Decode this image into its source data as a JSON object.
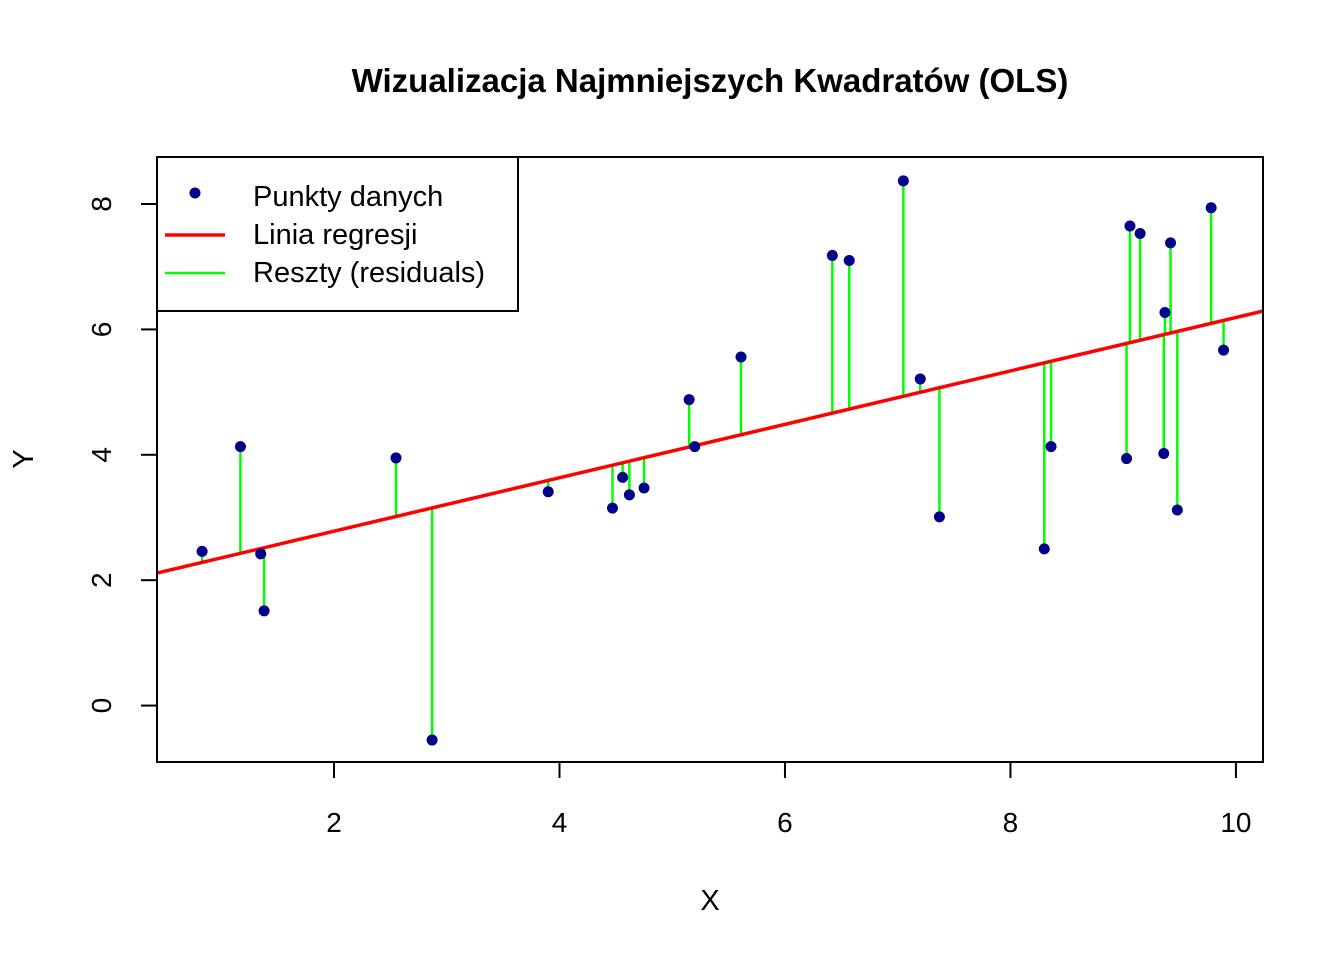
{
  "chart_data": {
    "type": "scatter",
    "title": "Wizualizacja Najmniejszych Kwadratów (OLS)",
    "xlabel": "X",
    "ylabel": "Y",
    "xlim": [
      0.43,
      10.24
    ],
    "ylim": [
      -0.9,
      8.75
    ],
    "xticks": [
      2,
      4,
      6,
      8,
      10
    ],
    "yticks": [
      0,
      2,
      4,
      6,
      8
    ],
    "grid": false,
    "legend_position": "top-left",
    "legend": [
      {
        "label": "Punkty danych",
        "kind": "point",
        "color": "#00008b"
      },
      {
        "label": "Linia regresji",
        "kind": "line",
        "color": "#ff0000"
      },
      {
        "label": "Reszty (residuals)",
        "kind": "line",
        "color": "#00ff00"
      }
    ],
    "regression": {
      "intercept": 1.93,
      "slope": 0.426,
      "color": "#ff0000"
    },
    "residual_color": "#00ff00",
    "point_color": "#00008b",
    "series": [
      {
        "name": "Punkty danych",
        "points": [
          {
            "x": 0.83,
            "y": 2.46
          },
          {
            "x": 1.17,
            "y": 4.13
          },
          {
            "x": 1.35,
            "y": 2.42
          },
          {
            "x": 1.38,
            "y": 1.51
          },
          {
            "x": 2.55,
            "y": 3.95
          },
          {
            "x": 2.87,
            "y": -0.55
          },
          {
            "x": 3.9,
            "y": 3.41
          },
          {
            "x": 4.47,
            "y": 3.15
          },
          {
            "x": 4.56,
            "y": 3.64
          },
          {
            "x": 4.62,
            "y": 3.36
          },
          {
            "x": 4.75,
            "y": 3.47
          },
          {
            "x": 5.15,
            "y": 4.88
          },
          {
            "x": 5.2,
            "y": 4.13
          },
          {
            "x": 5.61,
            "y": 5.56
          },
          {
            "x": 6.42,
            "y": 7.18
          },
          {
            "x": 6.57,
            "y": 7.1
          },
          {
            "x": 7.05,
            "y": 8.37
          },
          {
            "x": 7.2,
            "y": 5.21
          },
          {
            "x": 7.37,
            "y": 3.01
          },
          {
            "x": 8.3,
            "y": 2.5
          },
          {
            "x": 8.36,
            "y": 4.13
          },
          {
            "x": 9.03,
            "y": 3.94
          },
          {
            "x": 9.06,
            "y": 7.65
          },
          {
            "x": 9.15,
            "y": 7.53
          },
          {
            "x": 9.36,
            "y": 4.02
          },
          {
            "x": 9.37,
            "y": 6.27
          },
          {
            "x": 9.42,
            "y": 7.38
          },
          {
            "x": 9.48,
            "y": 3.12
          },
          {
            "x": 9.78,
            "y": 7.94
          },
          {
            "x": 9.89,
            "y": 5.67
          }
        ]
      }
    ]
  }
}
